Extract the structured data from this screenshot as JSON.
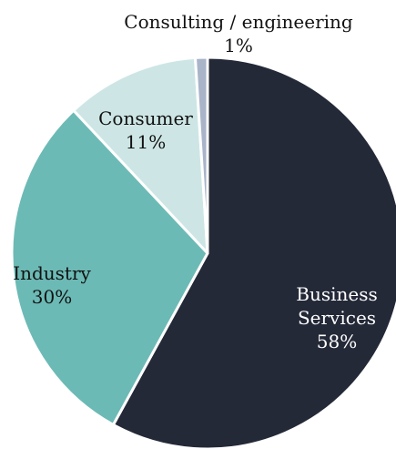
{
  "chart_data": {
    "type": "pie",
    "title": "",
    "slices": [
      {
        "name": "Business Services",
        "value": 58,
        "display_lines": [
          "Business",
          "Services",
          "58%"
        ],
        "color": "#242938",
        "label_color": "#ffffff"
      },
      {
        "name": "Industry",
        "value": 30,
        "display_lines": [
          "Industry",
          "30%"
        ],
        "color": "#6cbab5",
        "label_color": "#111111"
      },
      {
        "name": "Consumer",
        "value": 11,
        "display_lines": [
          "Consumer",
          "11%"
        ],
        "color": "#cde6e5",
        "label_color": "#111111"
      },
      {
        "name": "Consulting / engineering",
        "value": 1,
        "display_lines": [
          "Consulting / engineering",
          "1%"
        ],
        "color": "#a9b4c9",
        "label_color": "#111111"
      }
    ],
    "start_angle_deg": 0,
    "direction": "clockwise",
    "legend": "none"
  }
}
